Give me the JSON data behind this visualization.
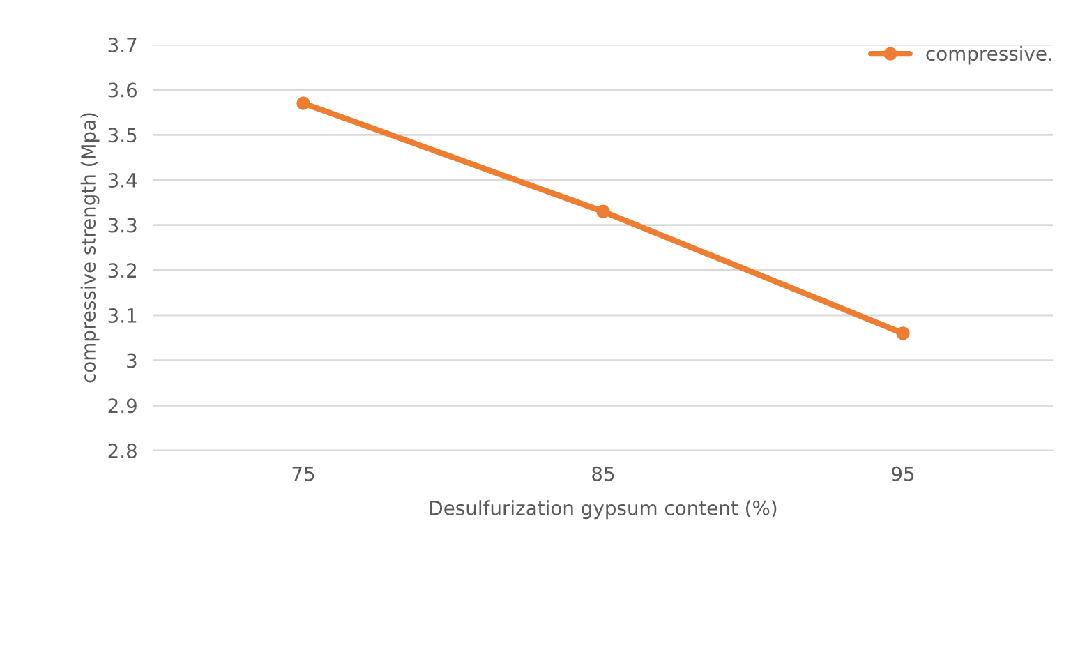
{
  "chart_data": {
    "type": "line",
    "xlabel": "Desulfurization gypsum content (%)",
    "ylabel": "compressive strength (Mpa)",
    "categories": [
      "75",
      "85",
      "95"
    ],
    "series": [
      {
        "name": "compressive.",
        "color": "#ed7d31",
        "values": [
          3.57,
          3.33,
          3.06
        ]
      }
    ],
    "ylim": [
      2.8,
      3.7
    ],
    "yticks": [
      2.8,
      2.9,
      3,
      3.1,
      3.2,
      3.3,
      3.4,
      3.5,
      3.6,
      3.7
    ],
    "grid": "y",
    "legend": "top right",
    "marker": "circle",
    "line_style": "solid"
  }
}
